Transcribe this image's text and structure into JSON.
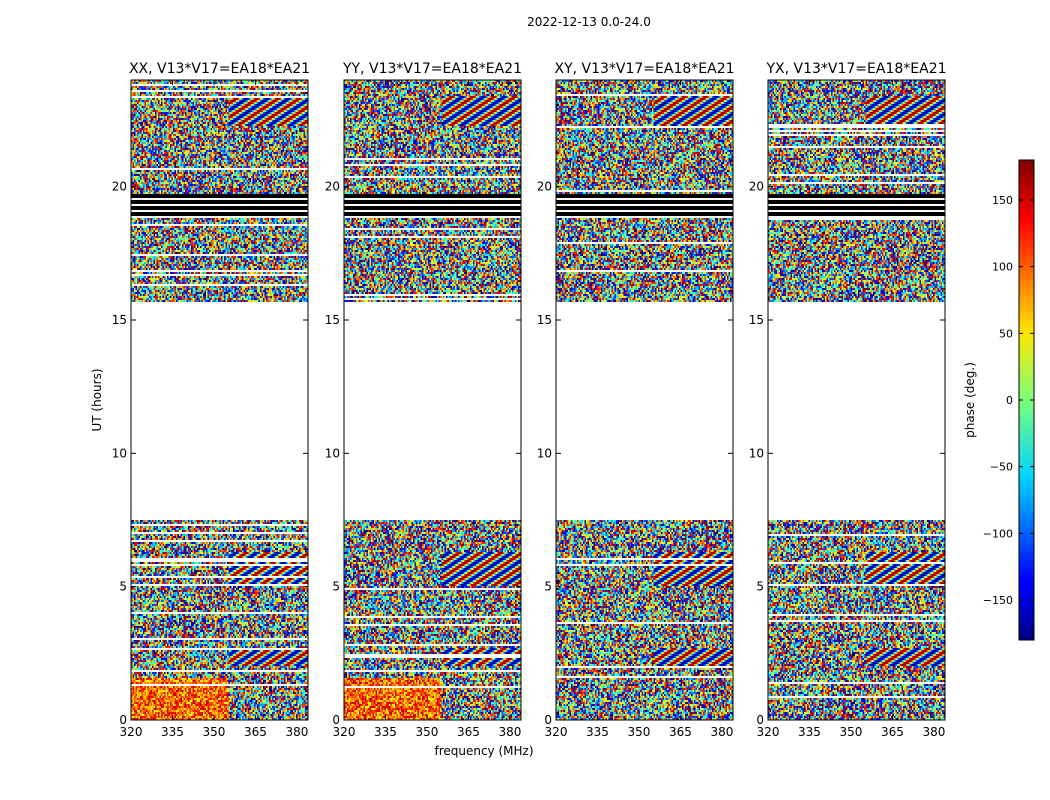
{
  "figure_title": "2022-12-13 0.0-24.0",
  "chart_data": {
    "type": "heatmap",
    "suptitle": "2022-12-13 0.0-24.0",
    "xlabel": "frequency (MHz)",
    "ylabel": "UT (hours)",
    "xlim": [
      320,
      384
    ],
    "ylim": [
      0,
      24
    ],
    "xticks": [
      320,
      335,
      350,
      365,
      380
    ],
    "yticks": [
      0,
      5,
      10,
      15,
      20
    ],
    "panels": [
      {
        "title": "XX, V13*V17=EA18*EA21",
        "pol": "XX"
      },
      {
        "title": "YY, V13*V17=EA18*EA21",
        "pol": "YY"
      },
      {
        "title": "XY, V13*V17=EA18*EA21",
        "pol": "XY"
      },
      {
        "title": "YX, V13*V17=EA18*EA21",
        "pol": "YX"
      }
    ],
    "data_time_ranges_hours": [
      [
        0.0,
        7.5
      ],
      [
        15.7,
        24.0
      ]
    ],
    "no_data_gap_hours": [
      7.5,
      15.7
    ],
    "black_band_hours": [
      18.8,
      19.7
    ],
    "colorbar": {
      "label": "phase (deg.)",
      "range": [
        -180,
        180
      ],
      "ticks": [
        -150,
        -100,
        -50,
        0,
        50,
        100,
        150
      ],
      "tick_labels": [
        "−150",
        "−100",
        "−50",
        "0",
        "50",
        "100",
        "150"
      ],
      "colormap": "jet"
    }
  }
}
